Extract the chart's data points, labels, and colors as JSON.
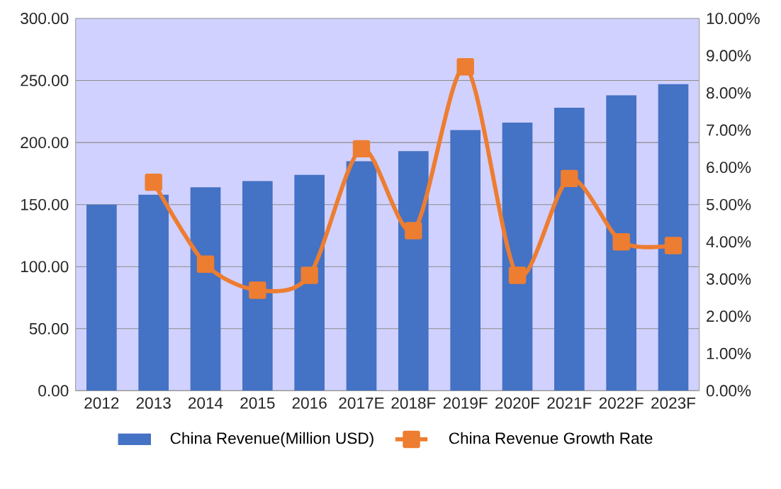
{
  "chart_data": {
    "type": "bar",
    "categories": [
      "2012",
      "2013",
      "2014",
      "2015",
      "2016",
      "2017E",
      "2018F",
      "2019F",
      "2020F",
      "2021F",
      "2022F",
      "2023F"
    ],
    "series": [
      {
        "name": "China Revenue(Million USD)",
        "color": "#4472c4",
        "values": [
          150,
          158,
          164,
          169,
          174,
          185,
          193,
          210,
          216,
          228,
          238,
          247
        ]
      },
      {
        "name": "China Revenue Growth Rate",
        "type": "line",
        "axis": "y2",
        "color": "#ed7d31",
        "values": [
          null,
          5.6,
          3.4,
          2.7,
          3.1,
          6.5,
          4.3,
          8.7,
          3.1,
          5.7,
          4.0,
          3.9
        ]
      }
    ],
    "ylim": [
      0,
      300
    ],
    "yticks": [
      {
        "value": 0,
        "label": "0.00"
      },
      {
        "value": 50,
        "label": "50.00"
      },
      {
        "value": 100,
        "label": "100.00"
      },
      {
        "value": 150,
        "label": "150.00"
      },
      {
        "value": 200,
        "label": "200.00"
      },
      {
        "value": 250,
        "label": "250.00"
      },
      {
        "value": 300,
        "label": "300.00"
      }
    ],
    "y2lim": [
      0,
      10
    ],
    "y2ticks": [
      {
        "value": 0,
        "label": "0.00%"
      },
      {
        "value": 1,
        "label": "1.00%"
      },
      {
        "value": 2,
        "label": "2.00%"
      },
      {
        "value": 3,
        "label": "3.00%"
      },
      {
        "value": 4,
        "label": "4.00%"
      },
      {
        "value": 5,
        "label": "5.00%"
      },
      {
        "value": 6,
        "label": "6.00%"
      },
      {
        "value": 7,
        "label": "7.00%"
      },
      {
        "value": 8,
        "label": "8.00%"
      },
      {
        "value": 9,
        "label": "9.00%"
      },
      {
        "value": 10,
        "label": "10.00%"
      }
    ],
    "grid": "y",
    "legend": "bottom",
    "marker": "square"
  }
}
